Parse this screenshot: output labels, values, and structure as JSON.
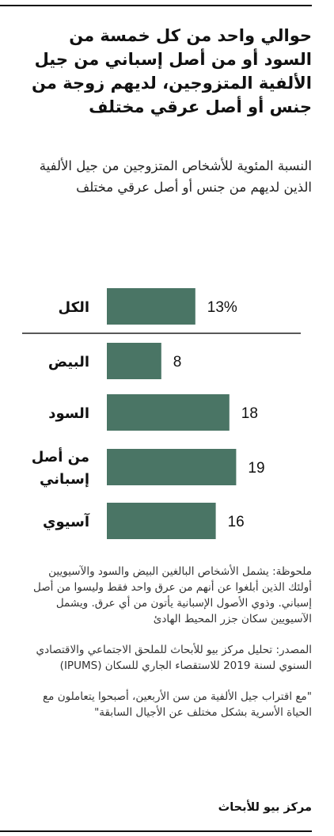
{
  "title": "حوالي واحد من كل خمسة من السود أو من أصل إسباني من جيل الألفية المتزوجين، لديهم زوجة من جنس أو أصل عرقي مختلف",
  "subtitle": "النسبة المئوية للأشخاص المتزوجين من جيل الألفية الذين لديهم من جنس أو أصل عرقي مختلف",
  "chart_data": {
    "type": "bar",
    "orientation": "horizontal",
    "categories": [
      "الكل",
      "البيض",
      "السود",
      "من أصل إسباني",
      "آسيوي"
    ],
    "category_lines": [
      [
        "الكل"
      ],
      [
        "البيض"
      ],
      [
        "السود"
      ],
      [
        "من أصل",
        "إسباني"
      ],
      [
        "آسيوي"
      ]
    ],
    "values": [
      13,
      8,
      18,
      19,
      16
    ],
    "value_labels": [
      "13%",
      "8",
      "18",
      "19",
      "16"
    ],
    "bar_color": "#4a7565",
    "separator_after_first": true,
    "grid": false
  },
  "notes": {
    "note": "ملحوظة: يشمل الأشخاص البالغين البيض والسود والآسيويين أولئك الذين أبلغوا عن أنهم من عرق واحد فقط وليسوا من أصل إسباني. وذوي الأصول الإسبانية يأتون من أي عرق. ويشمل الآسيويين سكان جزر المحيط الهادئ",
    "source": "المصدر: تحليل مركز بيو للأبحاث للملحق الاجتماعي والاقتصادي السنوي لسنة 2019 للاستقصاء الجاري للسكان (IPUMS)",
    "quote": "\"مع اقتراب جيل الألفية من سن الأربعين، أصبحوا يتعاملون مع الحياة الأسرية بشكل مختلف عن الأجيال السابقة\""
  },
  "brand": "مركز بيو للأبحاث"
}
